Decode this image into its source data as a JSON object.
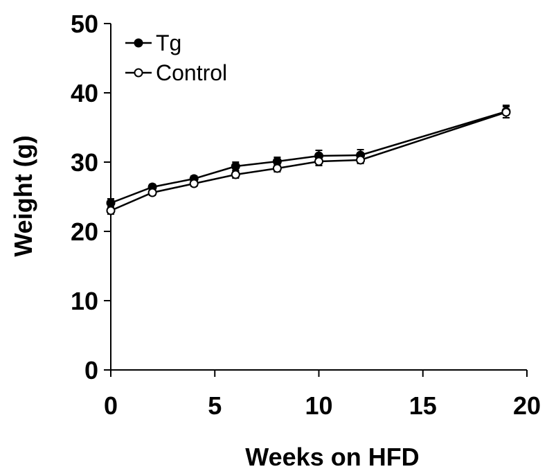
{
  "chart_data": {
    "type": "line",
    "title": "",
    "xlabel": "Weeks on HFD",
    "ylabel": "Weight (g)",
    "xlim": [
      0,
      20
    ],
    "ylim": [
      0,
      50
    ],
    "xticks": [
      0,
      5,
      10,
      15,
      20
    ],
    "yticks": [
      0,
      10,
      20,
      30,
      40,
      50
    ],
    "xtick_labels": [
      "0",
      "5",
      "10",
      "15",
      "20"
    ],
    "ytick_labels": [
      "0",
      "10",
      "20",
      "30",
      "40",
      "50"
    ],
    "grid": false,
    "legend_position": "top-left",
    "series": [
      {
        "name": "Tg",
        "marker": "filled-circle",
        "color": "#000000",
        "x": [
          0,
          2,
          4,
          6,
          8,
          10,
          12,
          19
        ],
        "y": [
          24.1,
          26.4,
          27.6,
          29.4,
          30.1,
          30.9,
          31.0,
          37.3
        ],
        "error": [
          0.6,
          0.4,
          0.4,
          0.6,
          0.6,
          0.8,
          0.8,
          0.9
        ]
      },
      {
        "name": "Control",
        "marker": "open-circle",
        "color": "#000000",
        "x": [
          0,
          2,
          4,
          6,
          8,
          10,
          12,
          19
        ],
        "y": [
          23.0,
          25.6,
          26.9,
          28.2,
          29.1,
          30.1,
          30.3,
          37.2
        ],
        "error": [
          0.5,
          0.4,
          0.4,
          0.5,
          0.5,
          0.6,
          0.5,
          0.8
        ]
      }
    ]
  }
}
